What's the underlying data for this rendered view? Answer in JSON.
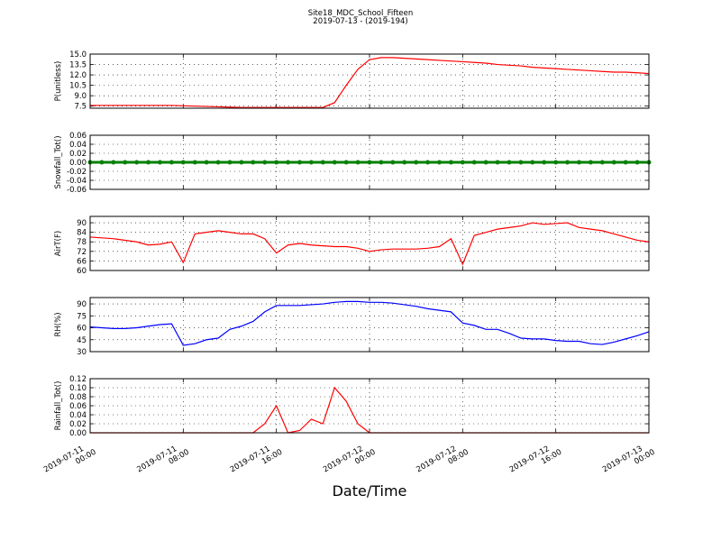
{
  "title": "Site18_MDC_School_Fifteen",
  "subtitle": "2019-07-13 - (2019-194)",
  "x_label": "Date/Time",
  "x": [
    "2019-07-11 00:00",
    "2019-07-11 01:00",
    "2019-07-11 02:00",
    "2019-07-11 03:00",
    "2019-07-11 04:00",
    "2019-07-11 05:00",
    "2019-07-11 06:00",
    "2019-07-11 07:00",
    "2019-07-11 08:00",
    "2019-07-11 09:00",
    "2019-07-11 10:00",
    "2019-07-11 11:00",
    "2019-07-11 12:00",
    "2019-07-11 13:00",
    "2019-07-11 14:00",
    "2019-07-11 15:00",
    "2019-07-11 16:00",
    "2019-07-11 17:00",
    "2019-07-11 18:00",
    "2019-07-11 19:00",
    "2019-07-11 20:00",
    "2019-07-11 21:00",
    "2019-07-11 22:00",
    "2019-07-11 23:00",
    "2019-07-12 00:00",
    "2019-07-12 01:00",
    "2019-07-12 02:00",
    "2019-07-12 03:00",
    "2019-07-12 04:00",
    "2019-07-12 05:00",
    "2019-07-12 06:00",
    "2019-07-12 07:00",
    "2019-07-12 08:00",
    "2019-07-12 09:00",
    "2019-07-12 10:00",
    "2019-07-12 11:00",
    "2019-07-12 12:00",
    "2019-07-12 13:00",
    "2019-07-12 14:00",
    "2019-07-12 15:00",
    "2019-07-12 16:00",
    "2019-07-12 17:00",
    "2019-07-12 18:00",
    "2019-07-12 19:00",
    "2019-07-12 20:00",
    "2019-07-12 21:00",
    "2019-07-12 22:00",
    "2019-07-12 23:00",
    "2019-07-13 00:00"
  ],
  "xlim": [
    "2019-07-11 00:00",
    "2019-07-13 00:00"
  ],
  "xticks": [
    "2019-07-11 00:00",
    "2019-07-11 08:00",
    "2019-07-11 16:00",
    "2019-07-12 00:00",
    "2019-07-12 08:00",
    "2019-07-12 16:00",
    "2019-07-13 00:00"
  ],
  "chart_data": [
    {
      "type": "line",
      "y_label": "P(unitless)",
      "color": "#ff0000",
      "grid": true,
      "ylim": [
        7.2,
        15
      ],
      "yticks": [
        {
          "value": 7.5,
          "label": "7.5"
        },
        {
          "value": 9,
          "label": "9.0"
        },
        {
          "value": 10.5,
          "label": "10.5"
        },
        {
          "value": 12,
          "label": "12.0"
        },
        {
          "value": 13.5,
          "label": "13.5"
        },
        {
          "value": 15,
          "label": "15.0"
        }
      ],
      "values": [
        7.6,
        7.6,
        7.6,
        7.6,
        7.6,
        7.6,
        7.6,
        7.6,
        7.55,
        7.5,
        7.45,
        7.4,
        7.35,
        7.3,
        7.3,
        7.3,
        7.3,
        7.3,
        7.3,
        7.3,
        7.3,
        8.0,
        10.5,
        12.8,
        14.2,
        14.5,
        14.5,
        14.4,
        14.3,
        14.2,
        14.1,
        14.0,
        13.9,
        13.8,
        13.7,
        13.5,
        13.4,
        13.3,
        13.1,
        13.0,
        12.9,
        12.8,
        12.7,
        12.6,
        12.5,
        12.4,
        12.4,
        12.3,
        12.2
      ]
    },
    {
      "type": "line",
      "y_label": "Snowfall_Tot()",
      "color": "#008000",
      "grid": true,
      "markers": true,
      "ylim": [
        -0.06,
        0.06
      ],
      "yticks": [
        -0.06,
        -0.04,
        -0.02,
        {
          "value": 0,
          "label": "0.00"
        },
        0.02,
        0.04,
        0.06
      ],
      "values": [
        0,
        0,
        0,
        0,
        0,
        0,
        0,
        0,
        0,
        0,
        0,
        0,
        0,
        0,
        0,
        0,
        0,
        0,
        0,
        0,
        0,
        0,
        0,
        0,
        0,
        0,
        0,
        0,
        0,
        0,
        0,
        0,
        0,
        0,
        0,
        0,
        0,
        0,
        0,
        0,
        0,
        0,
        0,
        0,
        0,
        0,
        0,
        0,
        0
      ]
    },
    {
      "type": "line",
      "y_label": "AirT(F)",
      "color": "#ff0000",
      "grid": true,
      "ylim": [
        60,
        94
      ],
      "yticks": [
        60,
        66,
        72,
        78,
        84,
        90
      ],
      "values": [
        81,
        80.5,
        80,
        79,
        78,
        76,
        76.5,
        78,
        65,
        83,
        84,
        85,
        84,
        83,
        83,
        80,
        71,
        76,
        77,
        76,
        75.5,
        75,
        75,
        74,
        72,
        73,
        73.5,
        73.5,
        73.5,
        74,
        75,
        80,
        64,
        82,
        84,
        86,
        87,
        88,
        90,
        89,
        89.5,
        90,
        87,
        86,
        85,
        83,
        81,
        79,
        78
      ]
    },
    {
      "type": "line",
      "y_label": "RH(%)",
      "color": "#0000ff",
      "grid": true,
      "ylim": [
        30,
        98
      ],
      "yticks": [
        30,
        45,
        60,
        75,
        90
      ],
      "values": [
        61,
        60,
        59,
        59,
        60,
        62,
        64,
        65,
        38,
        40,
        45,
        47,
        58,
        62,
        68,
        80,
        88,
        88,
        88,
        89,
        90,
        92,
        93,
        93,
        92,
        92,
        91,
        89,
        87,
        84,
        82,
        80,
        66,
        63,
        58,
        58,
        53,
        47,
        46,
        46,
        44,
        43,
        43,
        40,
        39,
        42,
        46,
        50,
        55
      ]
    },
    {
      "type": "line",
      "y_label": "Rainfall_Tot()",
      "color": "#ff0000",
      "grid": true,
      "ylim": [
        0,
        0.12
      ],
      "yticks": [
        {
          "value": 0,
          "label": "0.00"
        },
        0.02,
        0.04,
        0.06,
        0.08,
        {
          "value": 0.1,
          "label": "0.10"
        },
        0.12
      ],
      "values": [
        0,
        0,
        0,
        0,
        0,
        0,
        0,
        0,
        0,
        0,
        0,
        0,
        0,
        0,
        0,
        0.02,
        0.06,
        0,
        0.005,
        0.03,
        0.02,
        0.1,
        0.07,
        0.02,
        0,
        0,
        0,
        0,
        0,
        0,
        0,
        0,
        0,
        0,
        0,
        0,
        0,
        0,
        0,
        0,
        0,
        0,
        0,
        0,
        0,
        0,
        0,
        0,
        0
      ]
    }
  ]
}
